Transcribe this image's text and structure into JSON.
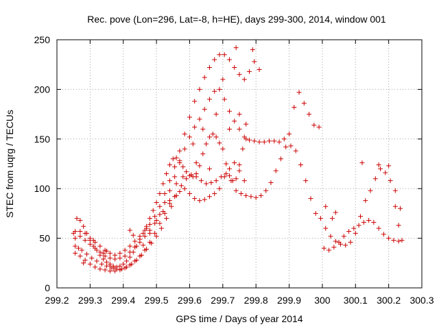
{
  "chart_data": {
    "type": "scatter",
    "title": "Rec. pove (Lon=296, Lat=-8, h=HE), days 299-300, 2014, window 001",
    "xlabel": "GPS time / Days of year 2014",
    "ylabel": "STEC from uqrg / TECUs",
    "xlim": [
      299.2,
      300.3
    ],
    "ylim": [
      0,
      250
    ],
    "x_ticks": [
      "299.2",
      "299.3",
      "299.4",
      "299.5",
      "299.6",
      "299.7",
      "299.8",
      "299.9",
      "300",
      "300.1",
      "300.2",
      "300.3"
    ],
    "y_ticks": [
      "0",
      "50",
      "100",
      "150",
      "200",
      "250"
    ],
    "grid": true,
    "marker": "plus",
    "color": "#cc0000",
    "series": [
      {
        "points": [
          [
            299.255,
            57
          ],
          [
            299.27,
            57
          ],
          [
            299.285,
            55
          ],
          [
            299.3,
            50
          ],
          [
            299.315,
            46
          ],
          [
            299.33,
            42
          ],
          [
            299.345,
            38
          ],
          [
            299.36,
            35
          ],
          [
            299.375,
            33
          ],
          [
            299.39,
            35
          ],
          [
            299.405,
            38
          ],
          [
            299.42,
            42
          ],
          [
            299.435,
            47
          ],
          [
            299.45,
            52
          ],
          [
            299.465,
            58
          ],
          [
            299.48,
            64
          ],
          [
            299.495,
            72
          ],
          [
            299.51,
            82
          ],
          [
            299.525,
            95
          ],
          [
            299.54,
            108
          ],
          [
            299.555,
            122
          ],
          [
            299.57,
            138
          ],
          [
            299.585,
            155
          ],
          [
            299.6,
            172
          ],
          [
            299.615,
            188
          ],
          [
            299.63,
            200
          ],
          [
            299.645,
            212
          ],
          [
            299.66,
            222
          ],
          [
            299.675,
            230
          ],
          [
            299.69,
            235
          ],
          [
            299.705,
            235
          ],
          [
            299.72,
            230
          ],
          [
            299.735,
            222
          ],
          [
            299.75,
            215
          ],
          [
            299.765,
            210
          ],
          [
            299.78,
            218
          ],
          [
            299.795,
            228
          ],
          [
            299.81,
            220
          ],
          [
            299.255,
            50
          ],
          [
            299.27,
            52
          ],
          [
            299.285,
            48
          ],
          [
            299.3,
            44
          ],
          [
            299.315,
            40
          ],
          [
            299.33,
            36
          ],
          [
            299.345,
            32
          ],
          [
            299.36,
            30
          ],
          [
            299.375,
            29
          ],
          [
            299.39,
            30
          ],
          [
            299.405,
            32
          ],
          [
            299.42,
            36
          ],
          [
            299.435,
            41
          ],
          [
            299.45,
            46
          ],
          [
            299.465,
            52
          ],
          [
            299.48,
            58
          ],
          [
            299.495,
            65
          ],
          [
            299.51,
            74
          ],
          [
            299.525,
            86
          ],
          [
            299.54,
            98
          ],
          [
            299.555,
            112
          ],
          [
            299.57,
            126
          ],
          [
            299.585,
            140
          ],
          [
            299.6,
            152
          ],
          [
            299.615,
            162
          ],
          [
            299.63,
            170
          ],
          [
            299.645,
            180
          ],
          [
            299.66,
            190
          ],
          [
            299.675,
            198
          ],
          [
            299.69,
            200
          ],
          [
            299.705,
            190
          ],
          [
            299.72,
            178
          ],
          [
            299.735,
            168
          ],
          [
            299.75,
            160
          ],
          [
            299.765,
            152
          ],
          [
            299.78,
            149
          ],
          [
            299.795,
            148
          ],
          [
            299.81,
            147
          ],
          [
            299.825,
            147
          ],
          [
            299.84,
            148
          ],
          [
            299.855,
            148
          ],
          [
            299.87,
            147
          ],
          [
            299.885,
            150
          ],
          [
            299.9,
            155
          ],
          [
            299.915,
            182
          ],
          [
            299.93,
            197
          ],
          [
            299.945,
            186
          ],
          [
            299.96,
            175
          ],
          [
            299.975,
            164
          ],
          [
            299.99,
            162
          ],
          [
            299.26,
            70
          ],
          [
            299.27,
            68
          ],
          [
            299.28,
            62
          ],
          [
            299.29,
            55
          ],
          [
            299.3,
            48
          ],
          [
            299.31,
            42
          ],
          [
            299.32,
            38
          ],
          [
            299.33,
            33
          ],
          [
            299.34,
            29
          ],
          [
            299.35,
            26
          ],
          [
            299.36,
            24
          ],
          [
            299.37,
            22
          ],
          [
            299.38,
            21
          ],
          [
            299.39,
            22
          ],
          [
            299.4,
            24
          ],
          [
            299.41,
            27
          ],
          [
            299.42,
            31
          ],
          [
            299.43,
            36
          ],
          [
            299.44,
            42
          ],
          [
            299.45,
            49
          ],
          [
            299.46,
            55
          ],
          [
            299.47,
            62
          ],
          [
            299.48,
            70
          ],
          [
            299.49,
            78
          ],
          [
            299.5,
            86
          ],
          [
            299.51,
            95
          ],
          [
            299.52,
            105
          ],
          [
            299.53,
            115
          ],
          [
            299.54,
            124
          ],
          [
            299.55,
            130
          ],
          [
            299.56,
            131
          ],
          [
            299.57,
            128
          ],
          [
            299.58,
            122
          ],
          [
            299.59,
            117
          ],
          [
            299.6,
            113
          ],
          [
            299.61,
            112
          ],
          [
            299.62,
            115
          ],
          [
            299.63,
            123
          ],
          [
            299.64,
            135
          ],
          [
            299.65,
            145
          ],
          [
            299.66,
            152
          ],
          [
            299.67,
            155
          ],
          [
            299.68,
            152
          ],
          [
            299.69,
            146
          ],
          [
            299.7,
            140
          ],
          [
            299.71,
            125
          ],
          [
            299.72,
            113
          ],
          [
            299.73,
            108
          ],
          [
            299.74,
            110
          ],
          [
            299.75,
            124
          ],
          [
            299.76,
            140
          ],
          [
            299.77,
            150
          ],
          [
            299.255,
            42
          ],
          [
            299.265,
            40
          ],
          [
            299.275,
            38
          ],
          [
            299.29,
            34
          ],
          [
            299.305,
            30
          ],
          [
            299.32,
            27
          ],
          [
            299.335,
            24
          ],
          [
            299.35,
            22
          ],
          [
            299.365,
            20
          ],
          [
            299.38,
            19
          ],
          [
            299.395,
            19
          ],
          [
            299.41,
            21
          ],
          [
            299.425,
            24
          ],
          [
            299.44,
            28
          ],
          [
            299.455,
            33
          ],
          [
            299.47,
            39
          ],
          [
            299.485,
            45
          ],
          [
            299.5,
            52
          ],
          [
            299.515,
            60
          ],
          [
            299.53,
            70
          ],
          [
            299.545,
            82
          ],
          [
            299.56,
            93
          ],
          [
            299.575,
            103
          ],
          [
            299.59,
            110
          ],
          [
            299.605,
            114
          ],
          [
            299.62,
            112
          ],
          [
            299.635,
            108
          ],
          [
            299.65,
            105
          ],
          [
            299.665,
            106
          ],
          [
            299.68,
            108
          ],
          [
            299.695,
            112
          ],
          [
            299.71,
            115
          ],
          [
            299.725,
            108
          ],
          [
            299.74,
            98
          ],
          [
            299.755,
            95
          ],
          [
            299.77,
            93
          ],
          [
            299.785,
            92
          ],
          [
            299.8,
            91
          ],
          [
            299.815,
            93
          ],
          [
            299.83,
            98
          ],
          [
            299.845,
            106
          ],
          [
            299.86,
            118
          ],
          [
            299.875,
            130
          ],
          [
            299.89,
            142
          ],
          [
            299.905,
            143
          ],
          [
            299.92,
            138
          ],
          [
            299.935,
            124
          ],
          [
            299.95,
            108
          ],
          [
            299.965,
            90
          ],
          [
            299.98,
            75
          ],
          [
            299.995,
            70
          ],
          [
            300.01,
            60
          ],
          [
            300.025,
            52
          ],
          [
            300.04,
            47
          ],
          [
            300.055,
            44
          ],
          [
            300.07,
            43
          ],
          [
            300.085,
            46
          ],
          [
            300.1,
            55
          ],
          [
            300.115,
            72
          ],
          [
            300.13,
            88
          ],
          [
            300.145,
            98
          ],
          [
            300.16,
            110
          ],
          [
            300.175,
            120
          ],
          [
            300.19,
            116
          ],
          [
            300.205,
            108
          ],
          [
            300.22,
            98
          ],
          [
            300.235,
            80
          ],
          [
            299.255,
            35
          ],
          [
            299.27,
            32
          ],
          [
            299.285,
            28
          ],
          [
            299.3,
            24
          ],
          [
            299.315,
            21
          ],
          [
            299.33,
            19
          ],
          [
            299.345,
            18
          ],
          [
            299.36,
            17
          ],
          [
            299.375,
            17
          ],
          [
            299.39,
            18
          ],
          [
            299.405,
            20
          ],
          [
            299.42,
            23
          ],
          [
            299.435,
            27
          ],
          [
            299.45,
            32
          ],
          [
            299.465,
            38
          ],
          [
            299.48,
            46
          ],
          [
            299.495,
            55
          ],
          [
            299.51,
            65
          ],
          [
            299.525,
            75
          ],
          [
            299.54,
            85
          ],
          [
            299.555,
            92
          ],
          [
            299.57,
            97
          ],
          [
            299.585,
            100
          ],
          [
            299.6,
            95
          ],
          [
            299.615,
            90
          ],
          [
            299.63,
            88
          ],
          [
            299.645,
            89
          ],
          [
            299.66,
            92
          ],
          [
            299.675,
            95
          ],
          [
            299.69,
            100
          ],
          [
            299.705,
            112
          ],
          [
            299.72,
            120
          ],
          [
            299.735,
            126
          ],
          [
            299.75,
            118
          ],
          [
            299.765,
            108
          ],
          [
            300.005,
            40
          ],
          [
            300.02,
            38
          ],
          [
            300.035,
            41
          ],
          [
            300.05,
            46
          ],
          [
            300.065,
            52
          ],
          [
            300.08,
            57
          ],
          [
            300.095,
            60
          ],
          [
            300.11,
            63
          ],
          [
            300.125,
            66
          ],
          [
            300.14,
            68
          ],
          [
            300.155,
            66
          ],
          [
            300.17,
            60
          ],
          [
            300.185,
            54
          ],
          [
            300.2,
            50
          ],
          [
            300.215,
            48
          ],
          [
            300.23,
            47
          ],
          [
            299.25,
            55
          ],
          [
            299.28,
            25
          ],
          [
            299.31,
            48
          ],
          [
            299.34,
            35
          ],
          [
            299.35,
            37
          ],
          [
            299.36,
            22
          ],
          [
            299.37,
            20
          ],
          [
            299.42,
            58
          ],
          [
            299.43,
            53
          ],
          [
            299.46,
            43
          ],
          [
            299.47,
            60
          ],
          [
            299.48,
            55
          ],
          [
            299.5,
            68
          ],
          [
            299.52,
            77
          ],
          [
            299.54,
            88
          ],
          [
            299.56,
            105
          ],
          [
            299.58,
            112
          ],
          [
            299.61,
            145
          ],
          [
            299.62,
            126
          ],
          [
            299.64,
            160
          ],
          [
            299.66,
            120
          ],
          [
            299.68,
            175
          ],
          [
            299.7,
            210
          ],
          [
            299.72,
            160
          ],
          [
            299.74,
            242
          ],
          [
            299.75,
            175
          ],
          [
            299.77,
            165
          ],
          [
            299.79,
            240
          ],
          [
            300.01,
            82
          ],
          [
            300.03,
            70
          ],
          [
            300.04,
            76
          ],
          [
            300.12,
            126
          ],
          [
            300.17,
            124
          ],
          [
            300.2,
            123
          ],
          [
            300.22,
            82
          ],
          [
            300.23,
            63
          ],
          [
            300.24,
            48
          ]
        ]
      }
    ]
  }
}
